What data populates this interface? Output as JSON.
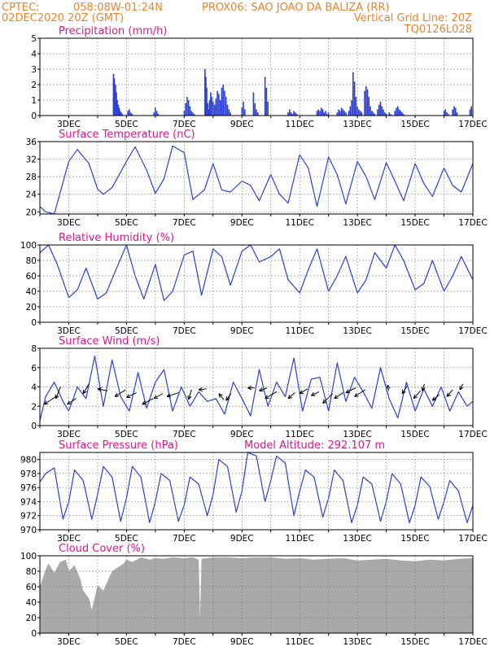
{
  "header": {
    "line1_left": "CPTEC:",
    "line1_coords": "058:08W-01:24N",
    "line1_station": "PROX06: SAO JOAO DA BALIZA (RR)",
    "line2_left": "02DEC2020 20Z (GMT)",
    "line2_right": "Vertical Grid Line: 20Z",
    "line3_right": "TQ0126L028"
  },
  "colors": {
    "header": "#e8842c",
    "panel_title": "#e0168a",
    "series": "#2a3fd8",
    "cloud": "#a9a9a9",
    "wind_arrow": "#000000"
  },
  "x_axis": {
    "day_start": 2.0,
    "day_end": 17.0,
    "ticks": [
      {
        "day": 3,
        "label": "3DEC"
      },
      {
        "day": 5,
        "label": "5DEC"
      },
      {
        "day": 7,
        "label": "7DEC"
      },
      {
        "day": 9,
        "label": "9DEC"
      },
      {
        "day": 11,
        "label": "11DEC"
      },
      {
        "day": 13,
        "label": "13DEC"
      },
      {
        "day": 15,
        "label": "15DEC"
      },
      {
        "day": 17,
        "label": "17DEC"
      }
    ]
  },
  "chart_data": [
    {
      "type": "bar",
      "title": "Precipitation (mm/h)",
      "ylim": [
        0,
        5
      ],
      "yticks": [
        "0",
        "1",
        "2",
        "3",
        "4",
        "5"
      ],
      "grid": true,
      "x": [
        4.55,
        4.58,
        4.62,
        4.65,
        4.68,
        4.72,
        4.75,
        4.78,
        4.82,
        4.85,
        5.05,
        5.1,
        5.15,
        5.2,
        5.95,
        6.0,
        6.05,
        6.1,
        7.0,
        7.05,
        7.1,
        7.15,
        7.2,
        7.25,
        7.3,
        7.35,
        7.72,
        7.75,
        7.78,
        7.82,
        7.85,
        7.88,
        7.92,
        7.95,
        8.0,
        8.05,
        8.1,
        8.15,
        8.2,
        8.25,
        8.3,
        8.35,
        8.4,
        8.45,
        8.5,
        8.55,
        8.6,
        9.0,
        9.05,
        9.1,
        9.4,
        9.45,
        9.5,
        9.55,
        9.8,
        9.85,
        9.9,
        10.6,
        10.65,
        10.7,
        10.75,
        10.8,
        10.85,
        10.9,
        11.6,
        11.65,
        11.7,
        11.75,
        11.8,
        11.85,
        11.9,
        11.95,
        12.0,
        12.3,
        12.35,
        12.4,
        12.45,
        12.5,
        12.55,
        12.6,
        12.7,
        12.75,
        12.8,
        12.85,
        12.9,
        12.95,
        13.0,
        13.05,
        13.1,
        13.15,
        13.25,
        13.3,
        13.35,
        13.4,
        13.45,
        13.5,
        13.55,
        13.6,
        13.7,
        13.75,
        13.8,
        13.85,
        13.9,
        13.95,
        14.0,
        14.1,
        14.15,
        14.3,
        14.35,
        14.4,
        14.45,
        14.5,
        14.55,
        14.6,
        16.0,
        16.05,
        16.1,
        16.15,
        16.3,
        16.35,
        16.4,
        16.45,
        16.9,
        16.95
      ],
      "values": [
        2.7,
        2.4,
        2.0,
        1.5,
        1.0,
        0.7,
        0.5,
        0.3,
        0.2,
        0.1,
        0.3,
        0.4,
        0.2,
        0.1,
        0.2,
        0.5,
        0.3,
        0.1,
        0.3,
        0.8,
        1.2,
        1.0,
        0.6,
        0.3,
        0.2,
        0.1,
        3.0,
        2.5,
        1.8,
        0.8,
        0.4,
        1.0,
        1.5,
        1.2,
        0.9,
        0.7,
        1.1,
        1.6,
        1.4,
        1.0,
        1.8,
        2.0,
        1.6,
        1.2,
        0.7,
        0.4,
        0.2,
        0.5,
        0.9,
        0.4,
        1.5,
        0.8,
        0.4,
        0.2,
        2.5,
        1.8,
        0.9,
        0.2,
        0.4,
        0.2,
        0.1,
        0.3,
        0.2,
        0.1,
        0.3,
        0.4,
        0.3,
        0.5,
        0.4,
        0.2,
        0.3,
        0.1,
        0.2,
        0.2,
        0.4,
        0.3,
        0.5,
        0.4,
        0.3,
        0.2,
        0.3,
        0.6,
        1.0,
        2.8,
        2.2,
        1.2,
        0.6,
        0.4,
        0.3,
        0.2,
        1.6,
        1.9,
        1.7,
        1.2,
        0.6,
        0.3,
        0.2,
        0.1,
        0.4,
        0.7,
        0.9,
        0.6,
        0.4,
        0.2,
        0.1,
        0.2,
        0.1,
        0.3,
        0.5,
        0.6,
        0.4,
        0.3,
        0.2,
        0.1,
        0.3,
        0.4,
        0.2,
        0.1,
        0.4,
        0.6,
        0.5,
        0.2,
        0.4,
        0.6
      ]
    },
    {
      "type": "line",
      "title": "Surface Temperature (nC)",
      "ylim": [
        19.5,
        36
      ],
      "yticks": [
        "20",
        "24",
        "28",
        "32",
        "36"
      ],
      "grid": true,
      "series": [
        {
          "x": [
            2.0,
            2.2,
            2.5,
            3.0,
            3.3,
            3.7,
            4.0,
            4.2,
            4.5,
            5.0,
            5.3,
            5.7,
            6.0,
            6.3,
            6.6,
            7.0,
            7.3,
            7.7,
            8.0,
            8.3,
            8.6,
            9.0,
            9.3,
            9.6,
            10.0,
            10.3,
            10.6,
            11.0,
            11.3,
            11.6,
            12.0,
            12.3,
            12.6,
            13.0,
            13.3,
            13.6,
            14.0,
            14.3,
            14.6,
            15.0,
            15.3,
            15.6,
            16.0,
            16.3,
            16.6,
            17.0
          ],
          "y": [
            21.2,
            20.0,
            19.5,
            31.5,
            34.2,
            31.0,
            25.2,
            24.0,
            25.5,
            31.5,
            34.8,
            29.5,
            24.2,
            27.5,
            35.0,
            33.5,
            22.8,
            25.0,
            31.0,
            25.0,
            24.5,
            27.0,
            26.0,
            22.5,
            28.5,
            24.0,
            22.0,
            33.0,
            30.0,
            21.2,
            32.5,
            28.5,
            21.8,
            31.5,
            28.0,
            22.8,
            31.2,
            27.0,
            22.5,
            31.0,
            26.5,
            23.5,
            30.0,
            26.0,
            24.5,
            31.0
          ]
        }
      ]
    },
    {
      "type": "line",
      "title": "Relative Humidity (%)",
      "ylim": [
        0,
        100
      ],
      "yticks": [
        "0",
        "20",
        "40",
        "60",
        "80",
        "100"
      ],
      "grid": true,
      "series": [
        {
          "x": [
            2.0,
            2.3,
            2.6,
            3.0,
            3.3,
            3.6,
            4.0,
            4.3,
            4.6,
            5.0,
            5.3,
            5.6,
            6.0,
            6.3,
            6.6,
            7.0,
            7.3,
            7.6,
            8.0,
            8.3,
            8.6,
            9.0,
            9.3,
            9.6,
            10.0,
            10.3,
            10.6,
            11.0,
            11.3,
            11.6,
            12.0,
            12.3,
            12.6,
            13.0,
            13.3,
            13.6,
            14.0,
            14.3,
            14.6,
            15.0,
            15.3,
            15.6,
            16.0,
            16.3,
            16.6,
            17.0
          ],
          "y": [
            90,
            100,
            75,
            32,
            42,
            70,
            30,
            38,
            65,
            100,
            60,
            30,
            75,
            28,
            40,
            87,
            92,
            35,
            95,
            85,
            48,
            92,
            100,
            78,
            85,
            95,
            55,
            38,
            68,
            95,
            40,
            60,
            85,
            38,
            55,
            90,
            70,
            100,
            80,
            42,
            50,
            80,
            40,
            60,
            85,
            55
          ]
        }
      ]
    },
    {
      "type": "line",
      "title": "Surface Wind (m/s)",
      "ylim": [
        0,
        8
      ],
      "yticks": [
        "0",
        "2",
        "4",
        "6",
        "8"
      ],
      "grid": true,
      "series": [
        {
          "x": [
            2.0,
            2.2,
            2.5,
            2.8,
            3.0,
            3.3,
            3.6,
            3.9,
            4.2,
            4.5,
            4.8,
            5.1,
            5.4,
            5.7,
            6.0,
            6.3,
            6.6,
            6.9,
            7.2,
            7.5,
            7.8,
            8.1,
            8.4,
            8.7,
            9.0,
            9.3,
            9.6,
            9.9,
            10.2,
            10.5,
            10.8,
            11.1,
            11.4,
            11.7,
            12.0,
            12.3,
            12.6,
            12.9,
            13.2,
            13.5,
            13.8,
            14.1,
            14.4,
            14.7,
            15.0,
            15.3,
            15.6,
            15.9,
            16.2,
            16.5,
            16.8,
            17.0
          ],
          "y": [
            0.5,
            3.0,
            4.5,
            2.5,
            1.5,
            4.0,
            2.8,
            7.2,
            2.0,
            6.8,
            3.0,
            1.5,
            5.5,
            1.8,
            4.5,
            5.8,
            1.5,
            4.0,
            2.0,
            3.5,
            2.5,
            2.8,
            1.2,
            4.5,
            2.8,
            1.0,
            5.8,
            2.0,
            4.5,
            3.0,
            7.0,
            1.5,
            4.8,
            5.0,
            1.5,
            6.5,
            2.5,
            5.0,
            3.5,
            1.8,
            6.0,
            2.8,
            0.8,
            4.5,
            1.5,
            3.8,
            2.0,
            4.0,
            1.5,
            3.5,
            2.0,
            2.5
          ]
        }
      ],
      "arrows": [
        {
          "x": 2.15,
          "y": 2.2,
          "u": 1.2,
          "v": 0.8
        },
        {
          "x": 2.55,
          "y": 2.8,
          "u": 0.5,
          "v": 1.2
        },
        {
          "x": 2.95,
          "y": 2.2,
          "u": 0.9,
          "v": 0.6
        },
        {
          "x": 3.5,
          "y": 3.3,
          "u": 0.6,
          "v": 1.0
        },
        {
          "x": 4.0,
          "y": 3.8,
          "u": 1.0,
          "v": -0.2
        },
        {
          "x": 4.6,
          "y": 3.0,
          "u": 1.1,
          "v": 0.7
        },
        {
          "x": 5.0,
          "y": 2.9,
          "u": 1.0,
          "v": 0.5
        },
        {
          "x": 5.55,
          "y": 2.2,
          "u": 1.1,
          "v": 0.6
        },
        {
          "x": 5.95,
          "y": 2.8,
          "u": 0.9,
          "v": 0.5
        },
        {
          "x": 6.4,
          "y": 3.0,
          "u": 1.2,
          "v": 0.4
        },
        {
          "x": 7.15,
          "y": 2.7,
          "u": 0.3,
          "v": 1.0
        },
        {
          "x": 7.5,
          "y": 3.7,
          "u": 0.8,
          "v": 0.1
        },
        {
          "x": 8.2,
          "y": 3.3,
          "u": 0.5,
          "v": -0.6
        },
        {
          "x": 8.45,
          "y": 2.6,
          "u": 0.5,
          "v": 0.7
        },
        {
          "x": 9.2,
          "y": 3.9,
          "u": 0.7,
          "v": 0.0
        },
        {
          "x": 9.6,
          "y": 3.6,
          "u": 0.8,
          "v": 0.3
        },
        {
          "x": 9.8,
          "y": 2.8,
          "u": 1.2,
          "v": 0.7
        },
        {
          "x": 10.6,
          "y": 2.8,
          "u": 0.7,
          "v": 0.6
        },
        {
          "x": 11.0,
          "y": 3.3,
          "u": 0.8,
          "v": 0.5
        },
        {
          "x": 11.4,
          "y": 3.1,
          "u": 0.8,
          "v": 0.4
        },
        {
          "x": 11.8,
          "y": 2.3,
          "u": 1.0,
          "v": 1.0
        },
        {
          "x": 12.2,
          "y": 2.8,
          "u": 0.9,
          "v": 0.6
        },
        {
          "x": 12.6,
          "y": 3.4,
          "u": 1.0,
          "v": 0.5
        },
        {
          "x": 12.9,
          "y": 3.0,
          "u": 1.1,
          "v": 0.7
        },
        {
          "x": 14.05,
          "y": 4.2,
          "u": 0.1,
          "v": -0.6
        },
        {
          "x": 14.55,
          "y": 3.3,
          "u": 0.5,
          "v": 0.8
        },
        {
          "x": 14.95,
          "y": 2.8,
          "u": 0.7,
          "v": 0.8
        },
        {
          "x": 15.25,
          "y": 3.6,
          "u": 0.2,
          "v": 0.7
        },
        {
          "x": 15.6,
          "y": 2.6,
          "u": 0.7,
          "v": 0.6
        },
        {
          "x": 16.1,
          "y": 3.0,
          "u": 0.6,
          "v": 0.7
        },
        {
          "x": 16.55,
          "y": 3.7,
          "u": 0.3,
          "v": 0.6
        }
      ]
    },
    {
      "type": "line",
      "title": "Surface Pressure (hPa)",
      "annotation": "Model Altitude: 292.107 m",
      "ylim": [
        970,
        981
      ],
      "yticks": [
        "970",
        "972",
        "974",
        "976",
        "978",
        "980"
      ],
      "grid": true,
      "series": [
        {
          "x": [
            2.0,
            2.2,
            2.5,
            2.8,
            3.0,
            3.2,
            3.5,
            3.8,
            4.0,
            4.2,
            4.5,
            4.8,
            5.0,
            5.2,
            5.5,
            5.8,
            6.0,
            6.2,
            6.5,
            6.8,
            7.0,
            7.2,
            7.5,
            7.8,
            8.0,
            8.2,
            8.5,
            8.8,
            9.0,
            9.2,
            9.5,
            9.8,
            10.0,
            10.2,
            10.5,
            10.8,
            11.0,
            11.2,
            11.5,
            11.8,
            12.0,
            12.2,
            12.5,
            12.8,
            13.0,
            13.2,
            13.5,
            13.8,
            14.0,
            14.2,
            14.5,
            14.8,
            15.0,
            15.2,
            15.5,
            15.8,
            16.0,
            16.2,
            16.5,
            16.8,
            17.0
          ],
          "y": [
            976.8,
            978.0,
            978.8,
            971.5,
            974.0,
            978.5,
            977.0,
            971.5,
            975.0,
            979.0,
            977.5,
            971.2,
            974.5,
            979.0,
            977.5,
            971.0,
            974.0,
            978.0,
            977.0,
            971.2,
            973.5,
            977.5,
            976.5,
            972.0,
            975.0,
            980.0,
            979.0,
            972.5,
            975.5,
            981.0,
            980.5,
            974.0,
            977.0,
            980.5,
            979.5,
            972.0,
            975.5,
            978.5,
            977.5,
            971.8,
            974.5,
            978.5,
            977.0,
            971.0,
            973.5,
            977.5,
            976.5,
            971.2,
            974.0,
            978.0,
            976.5,
            971.0,
            973.5,
            977.5,
            976.2,
            971.5,
            974.0,
            977.0,
            975.5,
            971.0,
            973.5
          ]
        }
      ]
    },
    {
      "type": "area",
      "title": "Cloud Cover (%)",
      "ylim": [
        0,
        100
      ],
      "yticks": [
        "0",
        "20",
        "40",
        "60",
        "80",
        "100"
      ],
      "grid": true,
      "series": [
        {
          "x": [
            2.0,
            2.2,
            2.3,
            2.5,
            2.7,
            2.9,
            3.0,
            3.2,
            3.4,
            3.5,
            3.7,
            3.8,
            4.0,
            4.2,
            4.4,
            4.5,
            4.7,
            4.9,
            5.0,
            5.2,
            5.5,
            5.8,
            6.0,
            6.3,
            6.6,
            7.0,
            7.3,
            7.5,
            7.55,
            7.6,
            7.8,
            8.0,
            8.5,
            9.0,
            9.5,
            10.0,
            10.5,
            11.0,
            11.5,
            12.0,
            12.5,
            13.0,
            13.5,
            14.0,
            14.5,
            15.0,
            15.5,
            16.0,
            16.5,
            17.0
          ],
          "y": [
            60,
            82,
            90,
            78,
            92,
            95,
            80,
            88,
            70,
            55,
            45,
            30,
            62,
            55,
            72,
            80,
            85,
            90,
            95,
            92,
            98,
            95,
            97,
            96,
            98,
            97,
            98,
            95,
            20,
            96,
            97,
            98,
            98,
            97,
            98,
            98,
            96,
            97,
            95,
            96,
            97,
            94,
            95,
            96,
            94,
            93,
            95,
            94,
            96,
            97
          ]
        }
      ]
    }
  ]
}
